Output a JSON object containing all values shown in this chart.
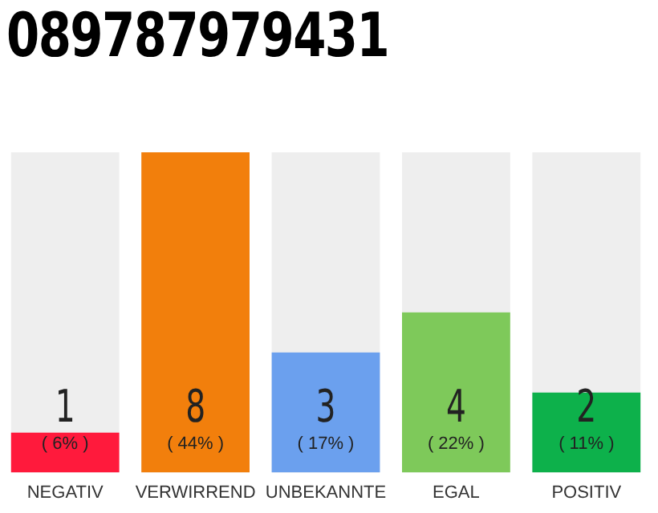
{
  "chart_data": {
    "type": "bar",
    "title": "089787979431",
    "categories": [
      "NEGATIV",
      "VERWIRREND",
      "UNBEKANNTE",
      "EGAL",
      "POSITIV"
    ],
    "values": [
      1,
      8,
      3,
      4,
      2
    ],
    "colors": [
      "#ff1a3c",
      "#f27f0c",
      "#6ba0ee",
      "#7ec95a",
      "#0db14b"
    ],
    "value_labels": [
      "1\n( 6% )",
      "8\n( 44% )",
      "3\n( 17% )",
      "4\n( 22% )",
      "2\n( 11% )"
    ],
    "tick_labels": "x",
    "grid": false,
    "legend": false
  }
}
